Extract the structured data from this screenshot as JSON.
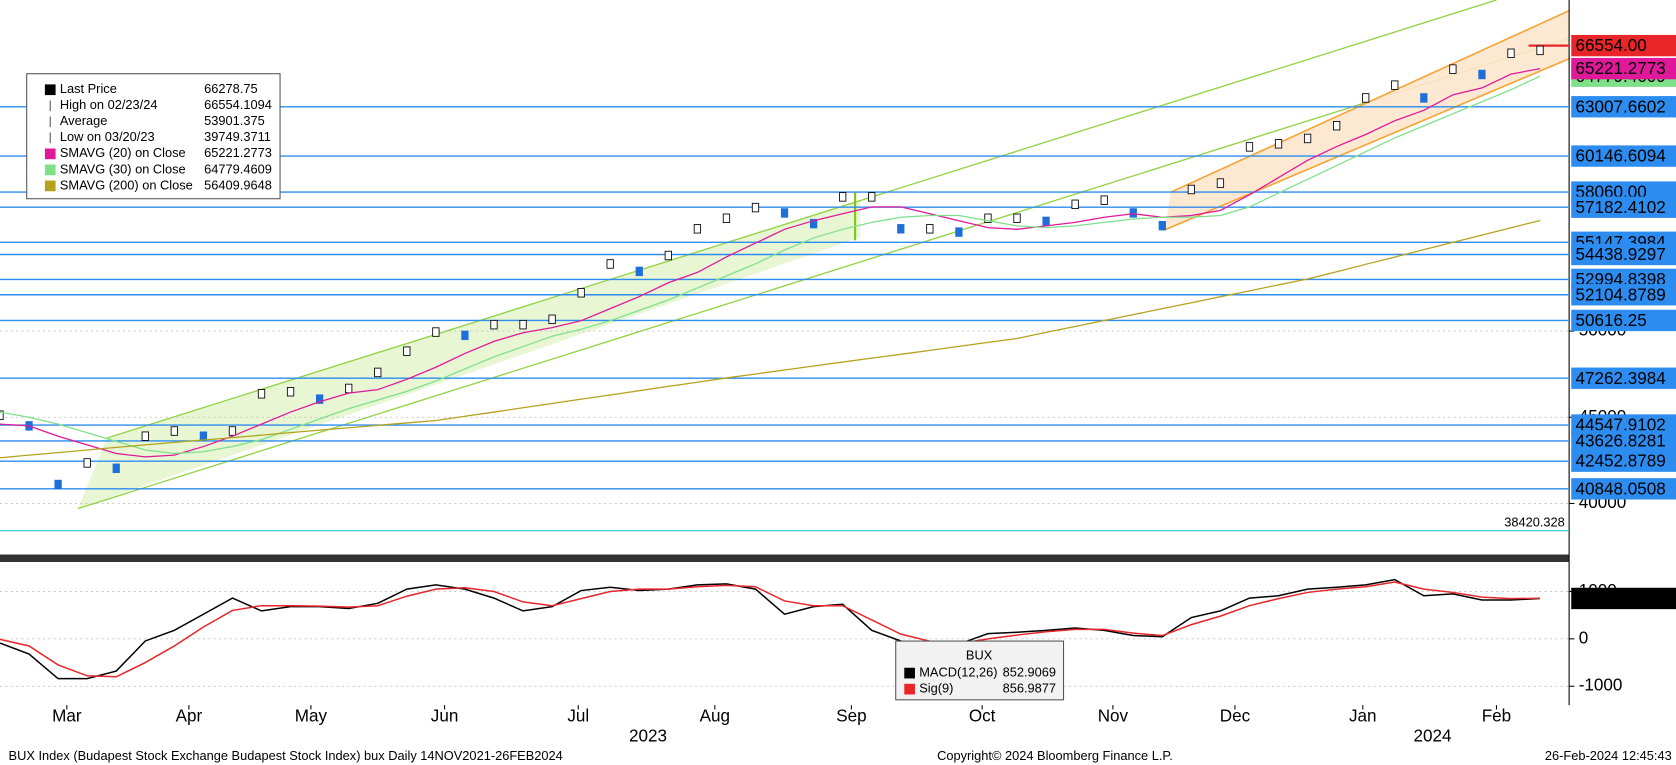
{
  "chart_data": [
    {
      "type": "line",
      "xlim": [
        0,
        54
      ],
      "ylim": [
        37100,
        69200
      ],
      "yticks": [
        40000,
        45000,
        50000
      ],
      "grid": true,
      "xticks": [
        {
          "value": 2.3,
          "label": "Mar"
        },
        {
          "value": 6.5,
          "label": "Apr"
        },
        {
          "value": 10.7,
          "label": "May"
        },
        {
          "value": 15.3,
          "label": "Jun"
        },
        {
          "value": 19.9,
          "label": "Jul"
        },
        {
          "value": 24.6,
          "label": "Aug"
        },
        {
          "value": 29.3,
          "label": "Sep"
        },
        {
          "value": 33.8,
          "label": "Oct"
        },
        {
          "value": 38.3,
          "label": "Nov"
        },
        {
          "value": 42.5,
          "label": "Dec"
        },
        {
          "value": 46.9,
          "label": "Jan"
        },
        {
          "value": 51.5,
          "label": "Feb"
        }
      ],
      "year_ticks": [
        {
          "value": 22.3,
          "label": "2023"
        },
        {
          "value": 49.3,
          "label": "2024"
        }
      ],
      "series": [
        {
          "name": "Last Price",
          "color": "#1e6fd9",
          "values": [
            45120,
            44500,
            41100,
            42350,
            42040,
            43900,
            44200,
            43900,
            44200,
            46360,
            46480,
            46050,
            46670,
            47600,
            48830,
            49940,
            49750,
            50370,
            50370,
            50680,
            52220,
            53890,
            53460,
            54380,
            55930,
            56540,
            57160,
            56850,
            56230,
            57780,
            57780,
            55930,
            55930,
            55740,
            56540,
            56540,
            56360,
            57350,
            57590,
            56850,
            56110,
            58210,
            58580,
            60680,
            60860,
            61170,
            61910,
            63520,
            64260,
            63520,
            65190,
            64880,
            66110,
            66278.75
          ]
        },
        {
          "name": "SMAVG (20)  on Close",
          "color": "#e0199a",
          "values": [
            44600,
            44500,
            43900,
            43400,
            42900,
            42700,
            42800,
            43300,
            43900,
            44600,
            45300,
            45900,
            46400,
            46600,
            47200,
            47900,
            48700,
            49400,
            49900,
            50200,
            50600,
            51300,
            52000,
            52800,
            53400,
            54300,
            55100,
            55900,
            56400,
            56800,
            57200,
            57200,
            56800,
            56400,
            56000,
            55900,
            56100,
            56300,
            56600,
            56800,
            56600,
            56700,
            57000,
            57900,
            58900,
            59900,
            60700,
            61400,
            62200,
            62800,
            63700,
            64100,
            64900,
            65221.2773
          ]
        },
        {
          "name": "SMAVG (30)  on Close",
          "color": "#7fe08a",
          "values": [
            45300,
            45000,
            44600,
            44100,
            43600,
            43100,
            42900,
            43000,
            43300,
            43700,
            44300,
            44900,
            45500,
            46000,
            46500,
            47100,
            47800,
            48500,
            49100,
            49700,
            50100,
            50600,
            51200,
            51800,
            52500,
            53200,
            53900,
            54700,
            55400,
            55900,
            56300,
            56600,
            56700,
            56700,
            56400,
            56100,
            56000,
            56100,
            56300,
            56500,
            56600,
            56600,
            56700,
            57200,
            58000,
            58800,
            59600,
            60400,
            61200,
            61900,
            62600,
            63300,
            64000,
            64779.4609
          ]
        },
        {
          "name": "SMAVG (200)  on Close",
          "color": "#b5a21c",
          "values": [
            42650,
            42800,
            42950,
            43100,
            43250,
            43400,
            43540,
            43680,
            43820,
            43960,
            44110,
            44250,
            44390,
            44530,
            44670,
            44810,
            45060,
            45300,
            45550,
            45800,
            46050,
            46290,
            46540,
            46790,
            47030,
            47280,
            47510,
            47740,
            47970,
            48200,
            48430,
            48650,
            48880,
            49110,
            49340,
            49570,
            49920,
            50260,
            50610,
            50950,
            51300,
            51640,
            51990,
            52330,
            52680,
            53020,
            53440,
            53870,
            54290,
            54720,
            55140,
            55560,
            55990,
            56409.9648
          ]
        }
      ],
      "stats": [
        {
          "label": "High on 02/23/24",
          "value": 66554.1094
        },
        {
          "label": "Average",
          "value": 53901.375
        },
        {
          "label": "Low on 03/20/23",
          "value": 39749.3711
        }
      ],
      "levels": [
        {
          "value": 66554,
          "label": "66554.00",
          "color": "#e8262a",
          "text_color": "#ffffff"
        },
        {
          "value": 63007.6602,
          "color": "#2d8cf0",
          "text_color": "#000000"
        },
        {
          "value": 60146.6094,
          "color": "#2d8cf0",
          "text_color": "#000000"
        },
        {
          "value": 58060,
          "label": "58060.00",
          "color": "#2d8cf0",
          "text_color": "#000000"
        },
        {
          "value": 57182.4102,
          "color": "#2d8cf0",
          "text_color": "#000000"
        },
        {
          "value": 55147.3984,
          "color": "#2d8cf0",
          "text_color": "#000000"
        },
        {
          "value": 54438.9297,
          "color": "#2d8cf0",
          "text_color": "#000000"
        },
        {
          "value": 52994.8398,
          "color": "#2d8cf0",
          "text_color": "#000000"
        },
        {
          "value": 52104.8789,
          "color": "#2d8cf0",
          "text_color": "#000000"
        },
        {
          "value": 50616.25,
          "color": "#2d8cf0",
          "text_color": "#000000"
        },
        {
          "value": 47262.3984,
          "color": "#2d8cf0",
          "text_color": "#000000"
        },
        {
          "value": 44547.9102,
          "color": "#2d8cf0",
          "text_color": "#000000"
        },
        {
          "value": 43626.8281,
          "color": "#2d8cf0",
          "text_color": "#000000"
        },
        {
          "value": 42452.8789,
          "color": "#2d8cf0",
          "text_color": "#000000"
        },
        {
          "value": 40848.0508,
          "color": "#2d8cf0",
          "text_color": "#000000"
        },
        {
          "value": 38420.328,
          "color": "#27c3d6",
          "text_color": "#27c3d6",
          "style": "plain"
        }
      ]
    },
    {
      "type": "line",
      "title": "BUX",
      "xlim": [
        0,
        54
      ],
      "ylim": [
        -1400,
        1600
      ],
      "yticks": [
        -1000,
        0,
        1000
      ],
      "grid": true,
      "series": [
        {
          "name": "MACD(12,26)",
          "color": "#000000",
          "values": [
            -90,
            -320,
            -840,
            -840,
            -680,
            -45,
            180,
            520,
            860,
            590,
            680,
            680,
            640,
            750,
            1050,
            1140,
            1050,
            860,
            590,
            680,
            1020,
            1090,
            1020,
            1050,
            1140,
            1160,
            1050,
            520,
            680,
            730,
            180,
            -45,
            -160,
            -110,
            110,
            140,
            180,
            230,
            180,
            70,
            45,
            450,
            590,
            860,
            910,
            1050,
            1090,
            1140,
            1250,
            910,
            950,
            820,
            820,
            852.9069
          ]
        },
        {
          "name": "Sig(9)",
          "color": "#e8262a",
          "values": [
            -10,
            -150,
            -550,
            -780,
            -800,
            -500,
            -150,
            250,
            600,
            700,
            700,
            690,
            670,
            700,
            900,
            1050,
            1080,
            1000,
            780,
            700,
            850,
            1000,
            1050,
            1050,
            1100,
            1130,
            1100,
            800,
            700,
            700,
            400,
            100,
            -50,
            -100,
            0,
            80,
            150,
            200,
            200,
            120,
            70,
            300,
            480,
            700,
            850,
            980,
            1050,
            1100,
            1200,
            1050,
            980,
            880,
            850,
            856.9877
          ]
        }
      ]
    }
  ],
  "footer": {
    "left": "BUX Index (Budapest Stock Exchange Budapest Stock Index) bux  Daily 14NOV2021-26FEB2024",
    "center": "Copyright© 2024 Bloomberg Finance L.P.",
    "right": "26-Feb-2024 12:45:43"
  }
}
